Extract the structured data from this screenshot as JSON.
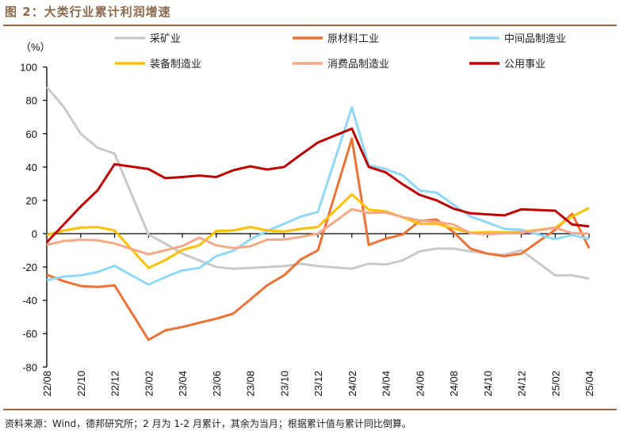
{
  "header": {
    "title": "图 2：大类行业累计利润增速"
  },
  "footer": {
    "source": "资料来源：Wind，德邦研究所；2 月为 1-2 月累计，其余为当月；根据累计值与累计同比倒算。"
  },
  "chart_data": {
    "type": "line",
    "title": "图 2：大类行业累计利润增速",
    "ylabel": "（%）",
    "xlabel": "",
    "ylim": [
      -80,
      100
    ],
    "yticks": [
      100,
      80,
      60,
      40,
      20,
      0,
      -20,
      -40,
      -60,
      -80
    ],
    "xtick_labels": [
      "22/08",
      "22/10",
      "22/12",
      "23/02",
      "23/04",
      "23/06",
      "23/08",
      "23/10",
      "23/12",
      "24/02",
      "24/04",
      "24/06",
      "24/08",
      "24/10",
      "24/12",
      "25/02",
      "25/04"
    ],
    "grid": false,
    "legend_position": "top",
    "x": [
      "22/08",
      "22/09",
      "22/10",
      "22/11",
      "22/12",
      "23/02",
      "23/03",
      "23/04",
      "23/05",
      "23/06",
      "23/07",
      "23/08",
      "23/09",
      "23/10",
      "23/11",
      "23/12",
      "24/02",
      "24/03",
      "24/04",
      "24/05",
      "24/06",
      "24/07",
      "24/08",
      "24/09",
      "24/10",
      "24/11",
      "24/12",
      "25/02",
      "25/03",
      "25/04"
    ],
    "series": [
      {
        "name": "采矿业",
        "color": "#C9C9C9",
        "values": [
          88,
          76,
          60,
          51.5,
          48,
          -0.5,
          -6,
          -12,
          -16,
          -20,
          -21,
          -20.6,
          -20,
          -19.5,
          -18,
          -19.5,
          -21,
          -18,
          -18.5,
          -16,
          -10.6,
          -9,
          -9,
          -10.6,
          -12,
          -12.7,
          -10,
          -25,
          -25,
          -27
        ]
      },
      {
        "name": "原材料工业",
        "color": "#ED7236",
        "values": [
          -24.6,
          -28.5,
          -31.4,
          -32,
          -31,
          -63.7,
          -58,
          -56,
          -53.4,
          -51,
          -48,
          -39.6,
          -31,
          -25,
          -15.4,
          -10,
          57,
          -6.7,
          -3,
          -0.5,
          7.6,
          8.5,
          1,
          -9,
          -12,
          -13.5,
          -12,
          2.4,
          12,
          -8.7
        ]
      },
      {
        "name": "中间品制造业",
        "color": "#8FD8F8",
        "values": [
          -28,
          -25.7,
          -25,
          -23,
          -19.3,
          -30.6,
          -26,
          -22,
          -20.6,
          -13.5,
          -10.3,
          -3.5,
          1.6,
          5.9,
          10.3,
          13,
          75.8,
          41,
          38.8,
          35,
          26,
          24.6,
          17.4,
          10.3,
          6.7,
          2.9,
          2.4,
          -3.3,
          -0.8,
          -3.2
        ]
      },
      {
        "name": "装备制造业",
        "color": "#FFC000",
        "values": [
          -0.8,
          1.9,
          3.6,
          4,
          1.9,
          -20.6,
          -15.8,
          -9.8,
          -7,
          1.6,
          1.9,
          4,
          2,
          1.3,
          2.9,
          4,
          23.6,
          14.4,
          13.5,
          9.8,
          5.9,
          5.9,
          3.2,
          0.5,
          1,
          0.8,
          1,
          3.6,
          10.3,
          15.4
        ]
      },
      {
        "name": "消费品制造业",
        "color": "#F4A885",
        "values": [
          -6.7,
          -4.4,
          -3.6,
          -4,
          -5.9,
          -12.4,
          -10,
          -7.4,
          -2.4,
          -7,
          -8.7,
          -7.6,
          -3.6,
          -3.5,
          -1.9,
          0,
          14.7,
          12.4,
          12.7,
          10,
          7.9,
          7.1,
          5.5,
          0.3,
          -0.3,
          0.2,
          0.5,
          3.5,
          0.3,
          0
        ]
      },
      {
        "name": "公用事业",
        "color": "#C00000",
        "values": [
          -5.2,
          5.5,
          16.3,
          26,
          41.7,
          38.8,
          33.3,
          34,
          34.9,
          34,
          38,
          40.4,
          38.5,
          40,
          47.5,
          54.7,
          63,
          40,
          36.8,
          29.6,
          23.3,
          20,
          15,
          12.2,
          11.6,
          11,
          14.6,
          13.8,
          5.5,
          4.4
        ]
      }
    ]
  }
}
